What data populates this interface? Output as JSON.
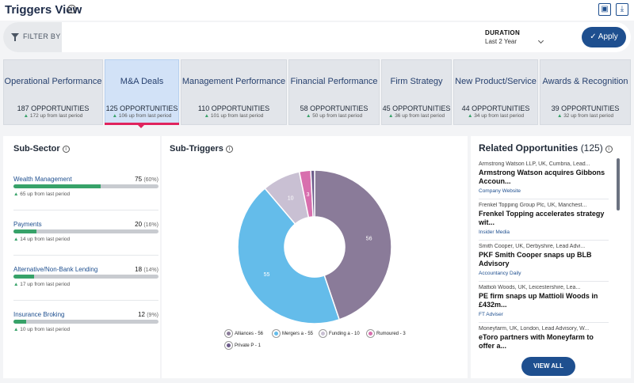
{
  "header": {
    "title": "Triggers View",
    "info_icon": "info-icon",
    "buttons": [
      {
        "icon": "export-icon"
      },
      {
        "icon": "download-icon"
      }
    ]
  },
  "filter": {
    "label": "FILTER BY",
    "duration_label": "DURATION",
    "duration_value": "Last 2 Year",
    "apply_label": "Apply"
  },
  "tiles": [
    {
      "name": "Operational Performance",
      "count": "187 OPPORTUNITIES",
      "change": "172 up from last period",
      "active": false
    },
    {
      "name": "M&A Deals",
      "count": "125 OPPORTUNITIES",
      "change": "106 up from last period",
      "active": true
    },
    {
      "name": "Management Performance",
      "count": "110 OPPORTUNITIES",
      "change": "101 up from last period",
      "active": false
    },
    {
      "name": "Financial Performance",
      "count": "58 OPPORTUNITIES",
      "change": "50 up from last period",
      "active": false
    },
    {
      "name": "Firm Strategy",
      "count": "45 OPPORTUNITIES",
      "change": "36 up from last period",
      "active": false
    },
    {
      "name": "New Product/Service",
      "count": "44 OPPORTUNITIES",
      "change": "34 up from last period",
      "active": false
    },
    {
      "name": "Awards & Recognition",
      "count": "39 OPPORTUNITIES",
      "change": "32 up from last period",
      "active": false
    }
  ],
  "sub_sector": {
    "title": "Sub-Sector",
    "items": [
      {
        "name": "Wealth Management",
        "value": "75",
        "pct": "(60%)",
        "fill": 0.6,
        "change": "65 up from last period"
      },
      {
        "name": "Payments",
        "value": "20",
        "pct": "(16%)",
        "fill": 0.16,
        "change": "14 up from last period"
      },
      {
        "name": "Alternative/Non-Bank Lending",
        "value": "18",
        "pct": "(14%)",
        "fill": 0.14,
        "change": "17 up from last period"
      },
      {
        "name": "Insurance Broking",
        "value": "12",
        "pct": "(9%)",
        "fill": 0.09,
        "change": "10 up from last period"
      }
    ]
  },
  "sub_triggers": {
    "title": "Sub-Triggers",
    "legend": [
      "Alliances - 56",
      "Mergers a - 55",
      "Funding a - 10",
      "Rumoured - 3",
      "Private P - 1"
    ]
  },
  "chart_data": {
    "type": "pie",
    "labels": [
      "Alliances",
      "Mergers a",
      "Funding a",
      "Rumoured",
      "Private P"
    ],
    "values": [
      56,
      55,
      10,
      3,
      1
    ],
    "colors": [
      "#8a7b99",
      "#64bcea",
      "#c9c0d3",
      "#d86fae",
      "#6c5b8a"
    ],
    "donut": true,
    "slice_labels": [
      "56",
      "55",
      "10",
      "3",
      ""
    ],
    "legend_position": "bottom"
  },
  "related": {
    "title": "Related Opportunities",
    "count": "(125)",
    "items": [
      {
        "source": "Armstrong Watson LLP, UK, Cumbria, Lead...",
        "title": "Armstrong Watson acquires Gibbons Accoun...",
        "pub": "Company Website"
      },
      {
        "source": "Frenkel Topping Group Plc, UK, Manchest...",
        "title": "Frenkel Topping accelerates strategy wit...",
        "pub": "Insider Media"
      },
      {
        "source": "Smith Cooper, UK, Derbyshire, Lead Advi...",
        "title": "PKF Smith Cooper snaps up BLB Advisory",
        "pub": "Accountancy Daily"
      },
      {
        "source": "Mattioli Woods, UK, Leicestershire, Lea...",
        "title": "PE firm snaps up Mattioli Woods in £432m...",
        "pub": "FT Adviser"
      },
      {
        "source": "Moneyfarm, UK, London, Lead Advisory, W...",
        "title": "eToro partners with Moneyfarm to offer a...",
        "pub": ""
      }
    ],
    "view_all": "VIEW ALL"
  }
}
